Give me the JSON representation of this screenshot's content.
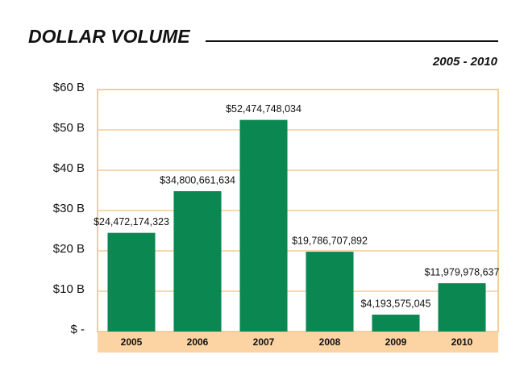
{
  "chart_data": {
    "type": "bar",
    "title": "DOLLAR VOLUME",
    "subtitle": "2005 - 2010",
    "categories": [
      "2005",
      "2006",
      "2007",
      "2008",
      "2009",
      "2010"
    ],
    "values": [
      24472174323,
      34800661634,
      52474748034,
      19786707892,
      4193575045,
      11979978637
    ],
    "value_labels": [
      "$24,472,174,323",
      "$34,800,661,634",
      "$52,474,748,034",
      "$19,786,707,892",
      "$4,193,575,045",
      "$11,979,978,637"
    ],
    "color": "#0b8752",
    "ylim": [
      0,
      60000000000
    ],
    "yticks": [
      {
        "value": 0,
        "label": "$ -"
      },
      {
        "value": 10000000000,
        "label": "$10 B"
      },
      {
        "value": 20000000000,
        "label": "$20 B"
      },
      {
        "value": 30000000000,
        "label": "$30 B"
      },
      {
        "value": 40000000000,
        "label": "$40 B"
      },
      {
        "value": 50000000000,
        "label": "$50 B"
      },
      {
        "value": 60000000000,
        "label": "$60 B"
      }
    ],
    "grid": true
  }
}
